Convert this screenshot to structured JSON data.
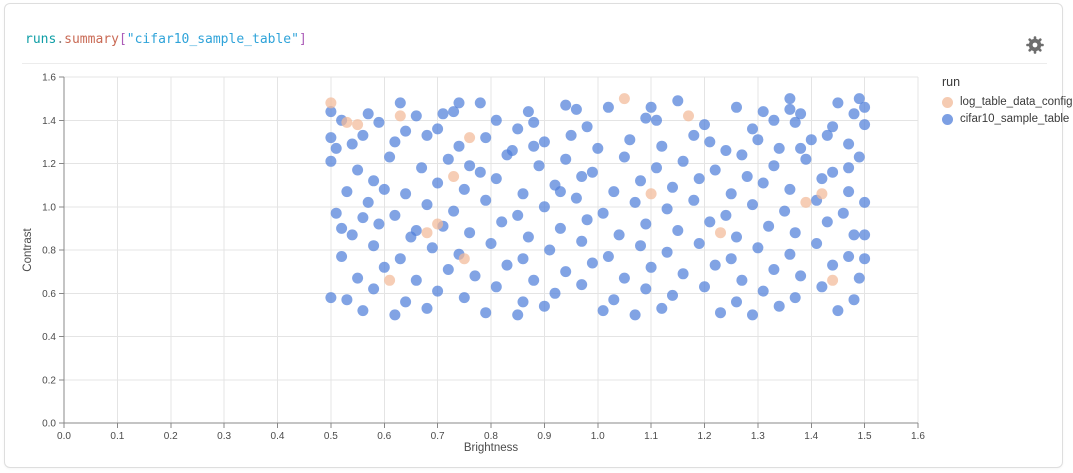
{
  "panel": {
    "title": {
      "accessor": "runs",
      "dot": ".",
      "property": "summary",
      "bracket_open": "[",
      "string_value": "\"cifar10_sample_table\"",
      "bracket_close": "]"
    },
    "colors": {
      "title_accessor": "#0f9ea6",
      "title_property": "#c96a55",
      "title_bracket": "#ab5cb8",
      "title_string": "#2fa3d9",
      "gear_icon": "#6d6d6d",
      "gridline": "#e4e4e4",
      "axis_line": "#888888",
      "tick_label": "#4b4b4b"
    }
  },
  "chart_data": {
    "type": "scatter",
    "title": "runs.summary[\"cifar10_sample_table\"]",
    "xlabel": "Brightness",
    "ylabel": "Contrast",
    "xlim": [
      0,
      1.6
    ],
    "ylim": [
      0,
      1.6
    ],
    "grid": true,
    "x_ticks": [
      "0.0",
      "0.1",
      "0.2",
      "0.3",
      "0.4",
      "0.5",
      "0.6",
      "0.7",
      "0.8",
      "0.9",
      "1.0",
      "1.1",
      "1.2",
      "1.3",
      "1.4",
      "1.5",
      "1.6"
    ],
    "y_ticks": [
      "0.0",
      "0.2",
      "0.4",
      "0.6",
      "0.8",
      "1.0",
      "1.2",
      "1.4",
      "1.6"
    ],
    "legend": {
      "title": "run",
      "position": "right"
    },
    "series": [
      {
        "name": "log_table_data_config",
        "color": "#f5cbb2",
        "fill": "#f2ba98",
        "points": [
          [
            0.5,
            1.48
          ],
          [
            0.53,
            1.39
          ],
          [
            0.55,
            1.38
          ],
          [
            0.63,
            1.42
          ],
          [
            0.76,
            1.32
          ],
          [
            0.73,
            1.14
          ],
          [
            0.7,
            0.92
          ],
          [
            0.68,
            0.88
          ],
          [
            0.75,
            0.76
          ],
          [
            0.61,
            0.66
          ],
          [
            1.05,
            1.5
          ],
          [
            1.17,
            1.42
          ],
          [
            1.1,
            1.06
          ],
          [
            1.23,
            0.88
          ],
          [
            1.39,
            1.02
          ],
          [
            1.42,
            1.06
          ],
          [
            1.44,
            0.66
          ]
        ]
      },
      {
        "name": "cifar10_sample_table",
        "color": "#7c9fe3",
        "fill": "#507fda",
        "points": [
          [
            0.5,
            1.44
          ],
          [
            0.57,
            1.43
          ],
          [
            0.63,
            1.48
          ],
          [
            0.66,
            1.42
          ],
          [
            0.71,
            1.43
          ],
          [
            0.73,
            1.44
          ],
          [
            0.74,
            1.48
          ],
          [
            0.78,
            1.48
          ],
          [
            0.87,
            1.44
          ],
          [
            0.94,
            1.47
          ],
          [
            0.96,
            1.45
          ],
          [
            1.02,
            1.46
          ],
          [
            1.1,
            1.46
          ],
          [
            1.15,
            1.49
          ],
          [
            1.26,
            1.46
          ],
          [
            1.31,
            1.44
          ],
          [
            1.36,
            1.5
          ],
          [
            1.36,
            1.45
          ],
          [
            1.38,
            1.43
          ],
          [
            1.45,
            1.48
          ],
          [
            1.49,
            1.5
          ],
          [
            1.5,
            1.46
          ],
          [
            1.48,
            1.43
          ],
          [
            0.52,
            1.4
          ],
          [
            0.59,
            1.39
          ],
          [
            0.64,
            1.35
          ],
          [
            0.7,
            1.36
          ],
          [
            0.81,
            1.4
          ],
          [
            0.85,
            1.36
          ],
          [
            0.88,
            1.39
          ],
          [
            0.98,
            1.37
          ],
          [
            1.09,
            1.41
          ],
          [
            1.11,
            1.4
          ],
          [
            1.2,
            1.38
          ],
          [
            1.29,
            1.36
          ],
          [
            1.33,
            1.4
          ],
          [
            1.37,
            1.39
          ],
          [
            1.44,
            1.37
          ],
          [
            1.5,
            1.38
          ],
          [
            0.5,
            1.32
          ],
          [
            0.51,
            1.27
          ],
          [
            0.54,
            1.29
          ],
          [
            0.56,
            1.33
          ],
          [
            0.62,
            1.3
          ],
          [
            0.68,
            1.33
          ],
          [
            0.74,
            1.28
          ],
          [
            0.79,
            1.32
          ],
          [
            0.84,
            1.26
          ],
          [
            0.88,
            1.28
          ],
          [
            0.9,
            1.3
          ],
          [
            0.95,
            1.33
          ],
          [
            1.0,
            1.27
          ],
          [
            1.06,
            1.31
          ],
          [
            1.12,
            1.28
          ],
          [
            1.18,
            1.33
          ],
          [
            1.21,
            1.3
          ],
          [
            1.24,
            1.26
          ],
          [
            1.3,
            1.31
          ],
          [
            1.34,
            1.27
          ],
          [
            1.38,
            1.27
          ],
          [
            1.4,
            1.31
          ],
          [
            1.43,
            1.33
          ],
          [
            1.47,
            1.29
          ],
          [
            0.5,
            1.21
          ],
          [
            0.55,
            1.17
          ],
          [
            0.61,
            1.23
          ],
          [
            0.67,
            1.18
          ],
          [
            0.72,
            1.22
          ],
          [
            0.76,
            1.19
          ],
          [
            0.78,
            1.16
          ],
          [
            0.83,
            1.24
          ],
          [
            0.89,
            1.19
          ],
          [
            0.94,
            1.22
          ],
          [
            0.99,
            1.16
          ],
          [
            1.05,
            1.23
          ],
          [
            1.11,
            1.18
          ],
          [
            1.16,
            1.21
          ],
          [
            1.22,
            1.17
          ],
          [
            1.27,
            1.24
          ],
          [
            1.33,
            1.19
          ],
          [
            1.39,
            1.22
          ],
          [
            1.44,
            1.16
          ],
          [
            1.47,
            1.18
          ],
          [
            1.49,
            1.23
          ],
          [
            0.53,
            1.07
          ],
          [
            0.58,
            1.12
          ],
          [
            0.6,
            1.08
          ],
          [
            0.64,
            1.06
          ],
          [
            0.7,
            1.11
          ],
          [
            0.75,
            1.08
          ],
          [
            0.81,
            1.13
          ],
          [
            0.86,
            1.06
          ],
          [
            0.92,
            1.1
          ],
          [
            0.93,
            1.07
          ],
          [
            0.97,
            1.14
          ],
          [
            1.03,
            1.07
          ],
          [
            1.08,
            1.12
          ],
          [
            1.14,
            1.09
          ],
          [
            1.19,
            1.13
          ],
          [
            1.25,
            1.06
          ],
          [
            1.28,
            1.14
          ],
          [
            1.31,
            1.11
          ],
          [
            1.36,
            1.08
          ],
          [
            1.42,
            1.13
          ],
          [
            1.47,
            1.07
          ],
          [
            0.51,
            0.97
          ],
          [
            0.56,
            0.95
          ],
          [
            0.57,
            1.02
          ],
          [
            0.62,
            0.96
          ],
          [
            0.68,
            1.01
          ],
          [
            0.73,
            0.98
          ],
          [
            0.79,
            1.03
          ],
          [
            0.85,
            0.96
          ],
          [
            0.9,
            1.0
          ],
          [
            0.96,
            1.04
          ],
          [
            1.01,
            0.97
          ],
          [
            1.07,
            1.02
          ],
          [
            1.13,
            0.99
          ],
          [
            1.18,
            1.03
          ],
          [
            1.24,
            0.96
          ],
          [
            1.29,
            1.01
          ],
          [
            1.35,
            0.98
          ],
          [
            1.41,
            1.03
          ],
          [
            1.46,
            0.97
          ],
          [
            1.5,
            1.02
          ],
          [
            0.52,
            0.9
          ],
          [
            0.54,
            0.87
          ],
          [
            0.59,
            0.92
          ],
          [
            0.65,
            0.86
          ],
          [
            0.66,
            0.89
          ],
          [
            0.71,
            0.91
          ],
          [
            0.76,
            0.88
          ],
          [
            0.82,
            0.93
          ],
          [
            0.87,
            0.86
          ],
          [
            0.93,
            0.9
          ],
          [
            0.98,
            0.94
          ],
          [
            1.04,
            0.87
          ],
          [
            1.09,
            0.92
          ],
          [
            1.15,
            0.89
          ],
          [
            1.21,
            0.93
          ],
          [
            1.26,
            0.86
          ],
          [
            1.32,
            0.91
          ],
          [
            1.37,
            0.88
          ],
          [
            1.43,
            0.93
          ],
          [
            1.48,
            0.87
          ],
          [
            1.5,
            0.87
          ],
          [
            0.52,
            0.77
          ],
          [
            0.58,
            0.82
          ],
          [
            0.63,
            0.76
          ],
          [
            0.69,
            0.81
          ],
          [
            0.74,
            0.78
          ],
          [
            0.8,
            0.83
          ],
          [
            0.86,
            0.76
          ],
          [
            0.91,
            0.8
          ],
          [
            0.97,
            0.84
          ],
          [
            1.02,
            0.77
          ],
          [
            1.08,
            0.82
          ],
          [
            1.13,
            0.79
          ],
          [
            1.19,
            0.83
          ],
          [
            1.25,
            0.76
          ],
          [
            1.3,
            0.81
          ],
          [
            1.36,
            0.78
          ],
          [
            1.41,
            0.83
          ],
          [
            1.47,
            0.77
          ],
          [
            1.5,
            0.76
          ],
          [
            0.55,
            0.67
          ],
          [
            0.6,
            0.72
          ],
          [
            0.66,
            0.66
          ],
          [
            0.72,
            0.71
          ],
          [
            0.77,
            0.68
          ],
          [
            0.83,
            0.73
          ],
          [
            0.88,
            0.66
          ],
          [
            0.94,
            0.7
          ],
          [
            0.99,
            0.74
          ],
          [
            1.05,
            0.67
          ],
          [
            1.1,
            0.72
          ],
          [
            1.16,
            0.69
          ],
          [
            1.22,
            0.73
          ],
          [
            1.27,
            0.66
          ],
          [
            1.33,
            0.71
          ],
          [
            1.38,
            0.68
          ],
          [
            1.44,
            0.73
          ],
          [
            1.49,
            0.67
          ],
          [
            0.5,
            0.58
          ],
          [
            0.53,
            0.57
          ],
          [
            0.58,
            0.62
          ],
          [
            0.64,
            0.56
          ],
          [
            0.7,
            0.61
          ],
          [
            0.75,
            0.58
          ],
          [
            0.81,
            0.63
          ],
          [
            0.86,
            0.56
          ],
          [
            0.92,
            0.6
          ],
          [
            0.97,
            0.64
          ],
          [
            1.03,
            0.57
          ],
          [
            1.09,
            0.62
          ],
          [
            1.14,
            0.59
          ],
          [
            1.2,
            0.63
          ],
          [
            1.26,
            0.56
          ],
          [
            1.31,
            0.61
          ],
          [
            1.37,
            0.58
          ],
          [
            1.42,
            0.63
          ],
          [
            1.48,
            0.57
          ],
          [
            0.56,
            0.52
          ],
          [
            0.62,
            0.5
          ],
          [
            0.68,
            0.53
          ],
          [
            0.79,
            0.51
          ],
          [
            0.85,
            0.5
          ],
          [
            0.9,
            0.54
          ],
          [
            1.01,
            0.52
          ],
          [
            1.07,
            0.5
          ],
          [
            1.12,
            0.53
          ],
          [
            1.23,
            0.51
          ],
          [
            1.29,
            0.5
          ],
          [
            1.34,
            0.54
          ],
          [
            1.45,
            0.52
          ]
        ]
      }
    ]
  }
}
